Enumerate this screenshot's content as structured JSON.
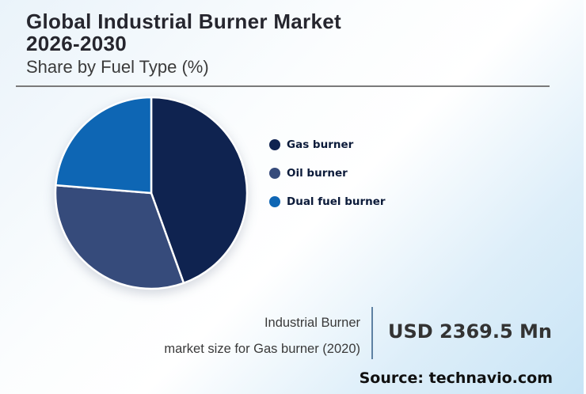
{
  "header": {
    "title_line1": "Global Industrial Burner Market",
    "title_line2": "2026-2030",
    "subtitle": "Share by Fuel Type (%)"
  },
  "chart_data": {
    "type": "pie",
    "title": "Global Industrial Burner Market 2026-2030",
    "subtitle": "Share by Fuel Type (%)",
    "unit": "%",
    "direction": "clockwise",
    "start_angle_deg": 0,
    "legend_position": "right",
    "data_labels_shown": false,
    "slices": [
      {
        "label": "Gas burner",
        "value": 44.5,
        "color": "#0F2350"
      },
      {
        "label": "Oil burner",
        "value": 31.8,
        "color": "#364B7B"
      },
      {
        "label": "Dual fuel burner",
        "value": 23.7,
        "color": "#0E66B4"
      }
    ],
    "slice_stroke_color": "#FFFFFF"
  },
  "footer": {
    "stat_label_line1": "Industrial Burner",
    "stat_label_line2": "market size for Gas burner (2020)",
    "stat_value": "USD 2369.5 Mn",
    "source": "Source: technavio.com"
  },
  "colors": {
    "title_text": "#26262E",
    "subtitle_text": "#3B3B3B",
    "header_rule": "#7A7A7A",
    "stat_divider": "#5E81A3",
    "stat_value_text": "#333333",
    "source_text": "#101010",
    "background_top_left": "#EAF3FA",
    "background_bottom_right": "#C8E4F6"
  }
}
